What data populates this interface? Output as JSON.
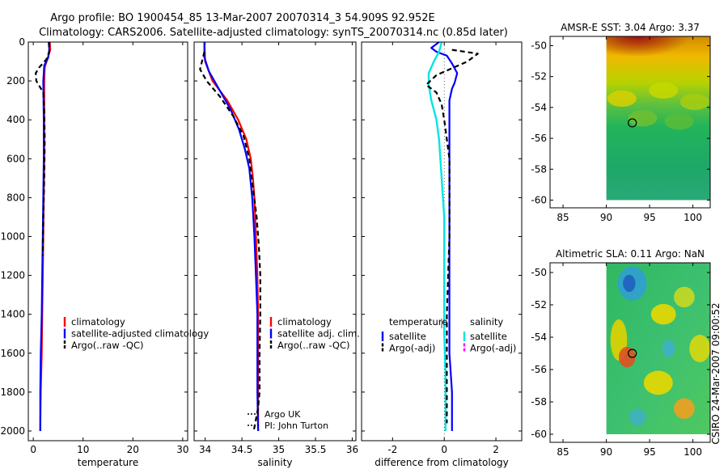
{
  "header": {
    "title1": "Argo profile: BO 1900454_85 13-Mar-2007 20070314_3 54.909S 92.952E",
    "title2": "Climatology: CARS2006. Satellite-adjusted climatology: synTS_20070314.nc (0.85d later)"
  },
  "side_label": "CSIRO 24-Mar-2007 09:00:52",
  "colors": {
    "clim": "#ff0000",
    "sat": "#0000ff",
    "argo": "#000000",
    "sal_sat": "#00e5e5",
    "sal_argo": "#ff00ff"
  },
  "chart_data": [
    {
      "type": "line",
      "xlabel": "temperature",
      "xlim": [
        -1,
        31
      ],
      "ylim": [
        0,
        2050
      ],
      "y_reversed": true,
      "xticks": [
        "0",
        "10",
        "20",
        "30"
      ],
      "yticks": [
        "0",
        "200",
        "400",
        "600",
        "800",
        "1000",
        "1200",
        "1400",
        "1600",
        "1800",
        "2000"
      ],
      "legend": [
        "climatology",
        "satellite-adjusted climatology",
        "Argo(..raw -QC)"
      ],
      "series": [
        {
          "name": "climatology",
          "style": "clim",
          "points": [
            [
              3.3,
              0
            ],
            [
              3.4,
              40
            ],
            [
              2.8,
              90
            ],
            [
              2.3,
              130
            ],
            [
              2.2,
              200
            ],
            [
              2.2,
              400
            ],
            [
              2.2,
              600
            ],
            [
              2.1,
              800
            ],
            [
              2.0,
              1000
            ],
            [
              1.9,
              1200
            ],
            [
              1.8,
              1400
            ],
            [
              1.7,
              1600
            ],
            [
              1.5,
              1800
            ],
            [
              1.4,
              2000
            ]
          ]
        },
        {
          "name": "satellite-adjusted climatology",
          "style": "sat",
          "points": [
            [
              3.1,
              0
            ],
            [
              3.2,
              40
            ],
            [
              3.0,
              80
            ],
            [
              2.2,
              120
            ],
            [
              2.0,
              200
            ],
            [
              2.1,
              400
            ],
            [
              2.1,
              600
            ],
            [
              2.0,
              800
            ],
            [
              1.9,
              1000
            ],
            [
              1.8,
              1200
            ],
            [
              1.7,
              1400
            ],
            [
              1.5,
              1600
            ],
            [
              1.4,
              1800
            ],
            [
              1.4,
              2000
            ]
          ]
        },
        {
          "name": "Argo(..raw -QC)",
          "style": "argo",
          "points": [
            [
              3.2,
              0
            ],
            [
              3.2,
              50
            ],
            [
              2.6,
              90
            ],
            [
              1.2,
              130
            ],
            [
              0.5,
              160
            ],
            [
              0.6,
              200
            ],
            [
              1.3,
              230
            ],
            [
              2.0,
              260
            ],
            [
              2.2,
              350
            ],
            [
              2.3,
              500
            ],
            [
              2.2,
              700
            ],
            [
              2.0,
              900
            ],
            [
              1.9,
              1100
            ]
          ]
        }
      ]
    },
    {
      "type": "line",
      "xlabel": "salinity",
      "xlim": [
        33.85,
        36.05
      ],
      "ylim": [
        0,
        2050
      ],
      "y_reversed": true,
      "xticks": [
        "34",
        "34.5",
        "35",
        "35.5",
        "36"
      ],
      "yticks": [],
      "legend": [
        "climatology",
        "satellite adj. clim.",
        "Argo(..raw -QC)"
      ],
      "annotation": [
        "Argo UK",
        "PI: John Turton"
      ],
      "series": [
        {
          "name": "climatology",
          "style": "clim",
          "points": [
            [
              33.99,
              0
            ],
            [
              34.0,
              100
            ],
            [
              34.1,
              200
            ],
            [
              34.3,
              300
            ],
            [
              34.45,
              400
            ],
            [
              34.56,
              500
            ],
            [
              34.62,
              600
            ],
            [
              34.65,
              700
            ],
            [
              34.67,
              800
            ],
            [
              34.69,
              1000
            ],
            [
              34.71,
              1200
            ],
            [
              34.72,
              1400
            ],
            [
              34.72,
              1600
            ],
            [
              34.72,
              1800
            ],
            [
              34.72,
              2000
            ]
          ]
        },
        {
          "name": "satellite adj. clim.",
          "style": "sat",
          "points": [
            [
              33.99,
              0
            ],
            [
              33.99,
              80
            ],
            [
              34.05,
              150
            ],
            [
              34.2,
              250
            ],
            [
              34.35,
              350
            ],
            [
              34.46,
              450
            ],
            [
              34.54,
              550
            ],
            [
              34.6,
              650
            ],
            [
              34.64,
              800
            ],
            [
              34.67,
              1000
            ],
            [
              34.69,
              1200
            ],
            [
              34.71,
              1400
            ],
            [
              34.71,
              1600
            ],
            [
              34.71,
              1800
            ],
            [
              34.72,
              2000
            ]
          ]
        },
        {
          "name": "Argo(..raw -QC)",
          "style": "argo",
          "points": [
            [
              33.99,
              50
            ],
            [
              33.93,
              140
            ],
            [
              34.02,
              200
            ],
            [
              34.2,
              280
            ],
            [
              34.38,
              380
            ],
            [
              34.52,
              480
            ],
            [
              34.6,
              600
            ],
            [
              34.65,
              750
            ],
            [
              34.7,
              900
            ],
            [
              34.73,
              1050
            ],
            [
              34.75,
              1200
            ],
            [
              34.75,
              1400
            ],
            [
              34.74,
              1600
            ],
            [
              34.74,
              1800
            ],
            [
              34.72,
              1880
            ],
            [
              34.68,
              1960
            ],
            [
              34.66,
              2000
            ]
          ]
        }
      ]
    },
    {
      "type": "line",
      "xlabel": "difference from climatology",
      "xlim": [
        -3.2,
        3.0
      ],
      "ylim": [
        0,
        2050
      ],
      "y_reversed": true,
      "xticks": [
        "-2",
        "0",
        "2"
      ],
      "yticks": [],
      "legend_left_title": "temperature",
      "legend_left": [
        "satellite",
        "Argo(-adj)"
      ],
      "legend_right_title": "salinity",
      "legend_right": [
        "satellite",
        "Argo(-adj)"
      ],
      "series": [
        {
          "name": "satellite",
          "style": "sat",
          "points": [
            [
              -0.2,
              0
            ],
            [
              -0.5,
              30
            ],
            [
              -0.3,
              50
            ],
            [
              0.1,
              70
            ],
            [
              0.3,
              110
            ],
            [
              0.5,
              160
            ],
            [
              0.4,
              210
            ],
            [
              0.3,
              240
            ],
            [
              0.2,
              300
            ],
            [
              0.2,
              500
            ],
            [
              0.2,
              800
            ],
            [
              0.2,
              1100
            ],
            [
              0.2,
              1400
            ],
            [
              0.2,
              1600
            ],
            [
              0.3,
              1800
            ],
            [
              0.3,
              2000
            ]
          ]
        },
        {
          "name": "satellite",
          "style": "sal_sat",
          "points": [
            [
              -0.1,
              0
            ],
            [
              -0.2,
              50
            ],
            [
              -0.4,
              100
            ],
            [
              -0.6,
              160
            ],
            [
              -0.6,
              220
            ],
            [
              -0.5,
              300
            ],
            [
              -0.3,
              400
            ],
            [
              -0.2,
              500
            ],
            [
              -0.1,
              700
            ],
            [
              0.0,
              900
            ],
            [
              0.0,
              1100
            ],
            [
              0.0,
              1300
            ],
            [
              0.0,
              1500
            ],
            [
              0.05,
              1700
            ],
            [
              0.05,
              2000
            ]
          ]
        },
        {
          "name": "Argo(-adj)",
          "style": "argo",
          "points": [
            [
              0.3,
              40
            ],
            [
              1.3,
              60
            ],
            [
              0.9,
              100
            ],
            [
              -0.3,
              170
            ],
            [
              -0.7,
              220
            ],
            [
              -0.3,
              260
            ],
            [
              -0.1,
              320
            ],
            [
              0.0,
              400
            ],
            [
              0.1,
              500
            ],
            [
              0.2,
              600
            ],
            [
              0.2,
              800
            ],
            [
              0.2,
              1000
            ],
            [
              0.15,
              1200
            ],
            [
              0.1,
              1400
            ],
            [
              0.1,
              1600
            ],
            [
              0.1,
              1800
            ],
            [
              0.1,
              1960
            ]
          ]
        }
      ]
    },
    {
      "type": "heatmap",
      "title": "AMSR-E SST: 3.04 Argo: 3.37",
      "xlim": [
        83.5,
        102
      ],
      "ylim": [
        -60.5,
        -49.4
      ],
      "xticks": [
        "85",
        "90",
        "95",
        "100"
      ],
      "yticks": [
        "-50",
        "-52",
        "-54",
        "-56",
        "-58",
        "-60"
      ],
      "field_extent": {
        "lon": [
          90,
          102
        ],
        "lat": [
          -60,
          -49.4
        ]
      },
      "marker": {
        "lon": 93,
        "lat": -55
      }
    },
    {
      "type": "heatmap",
      "title": "Altimetric SLA: 0.11 Argo: NaN",
      "xlim": [
        83.5,
        102
      ],
      "ylim": [
        -60.5,
        -49.4
      ],
      "xticks": [
        "85",
        "90",
        "95",
        "100"
      ],
      "yticks": [
        "-50",
        "-52",
        "-54",
        "-56",
        "-58",
        "-60"
      ],
      "field_extent": {
        "lon": [
          90,
          102
        ],
        "lat": [
          -60,
          -49.4
        ]
      },
      "marker": {
        "lon": 93,
        "lat": -55
      }
    }
  ]
}
